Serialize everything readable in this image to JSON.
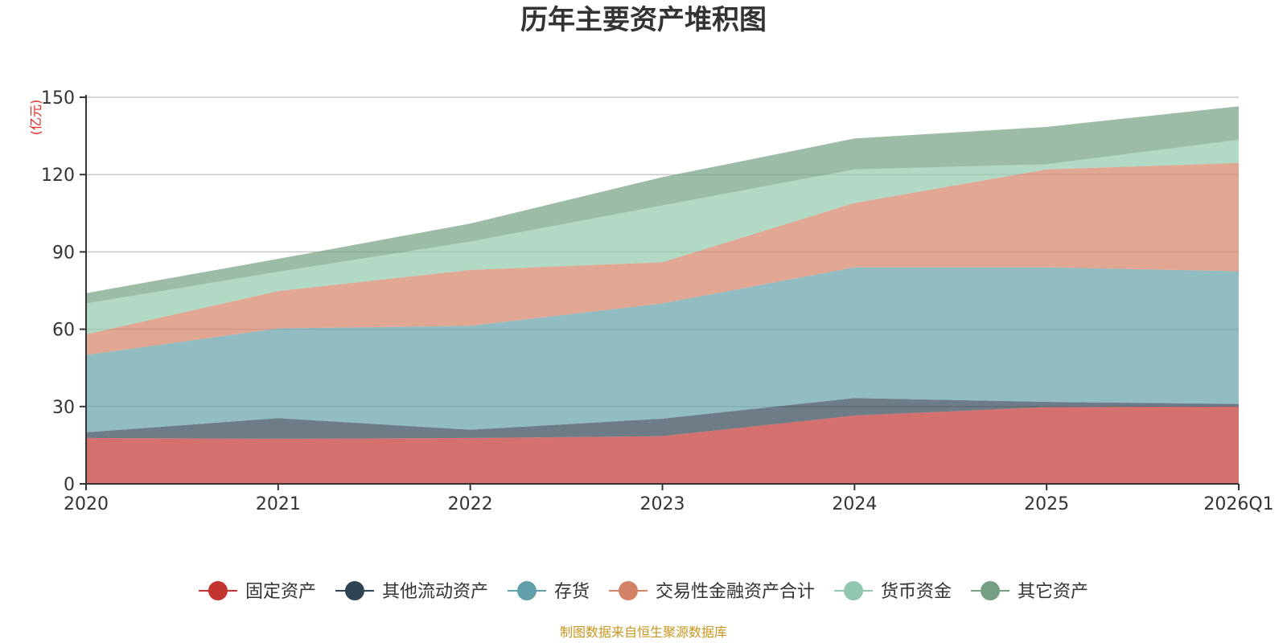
{
  "chart_data": {
    "type": "area",
    "stacked": true,
    "title": "历年主要资产堆积图",
    "unit_label": "(亿元)",
    "categories": [
      "2020",
      "2021",
      "2022",
      "2023",
      "2024",
      "2025",
      "2026Q1"
    ],
    "ylim": [
      0,
      150
    ],
    "yticks": [
      0,
      30,
      60,
      90,
      120,
      150
    ],
    "grid": true,
    "legend_position": "bottom",
    "series": [
      {
        "name": "固定资产",
        "color": "#c23531",
        "values": [
          17.8,
          17.5,
          17.8,
          18.5,
          26.5,
          29.8,
          30.0
        ]
      },
      {
        "name": "其他流动资产",
        "color": "#2f4554",
        "values": [
          2.2,
          8.0,
          3.2,
          6.8,
          6.8,
          2.0,
          1.0
        ]
      },
      {
        "name": "存货",
        "color": "#61a0a8",
        "values": [
          30.0,
          34.8,
          40.3,
          44.7,
          50.7,
          52.2,
          51.5
        ]
      },
      {
        "name": "交易性金融资产合计",
        "color": "#d48265",
        "values": [
          8.0,
          14.5,
          21.7,
          16.0,
          25.0,
          38.0,
          42.0
        ]
      },
      {
        "name": "货币资金",
        "color": "#91c7ae",
        "values": [
          12.0,
          7.5,
          11.0,
          22.0,
          13.0,
          2.0,
          9.0
        ]
      },
      {
        "name": "其它资产",
        "color": "#749f83",
        "values": [
          4.0,
          5.0,
          7.0,
          11.0,
          12.0,
          14.5,
          13.0
        ]
      }
    ]
  },
  "source_text": "制图数据来自恒生聚源数据库",
  "colors": {
    "unit_label": "#e8281e",
    "source_text": "#c8961e"
  }
}
